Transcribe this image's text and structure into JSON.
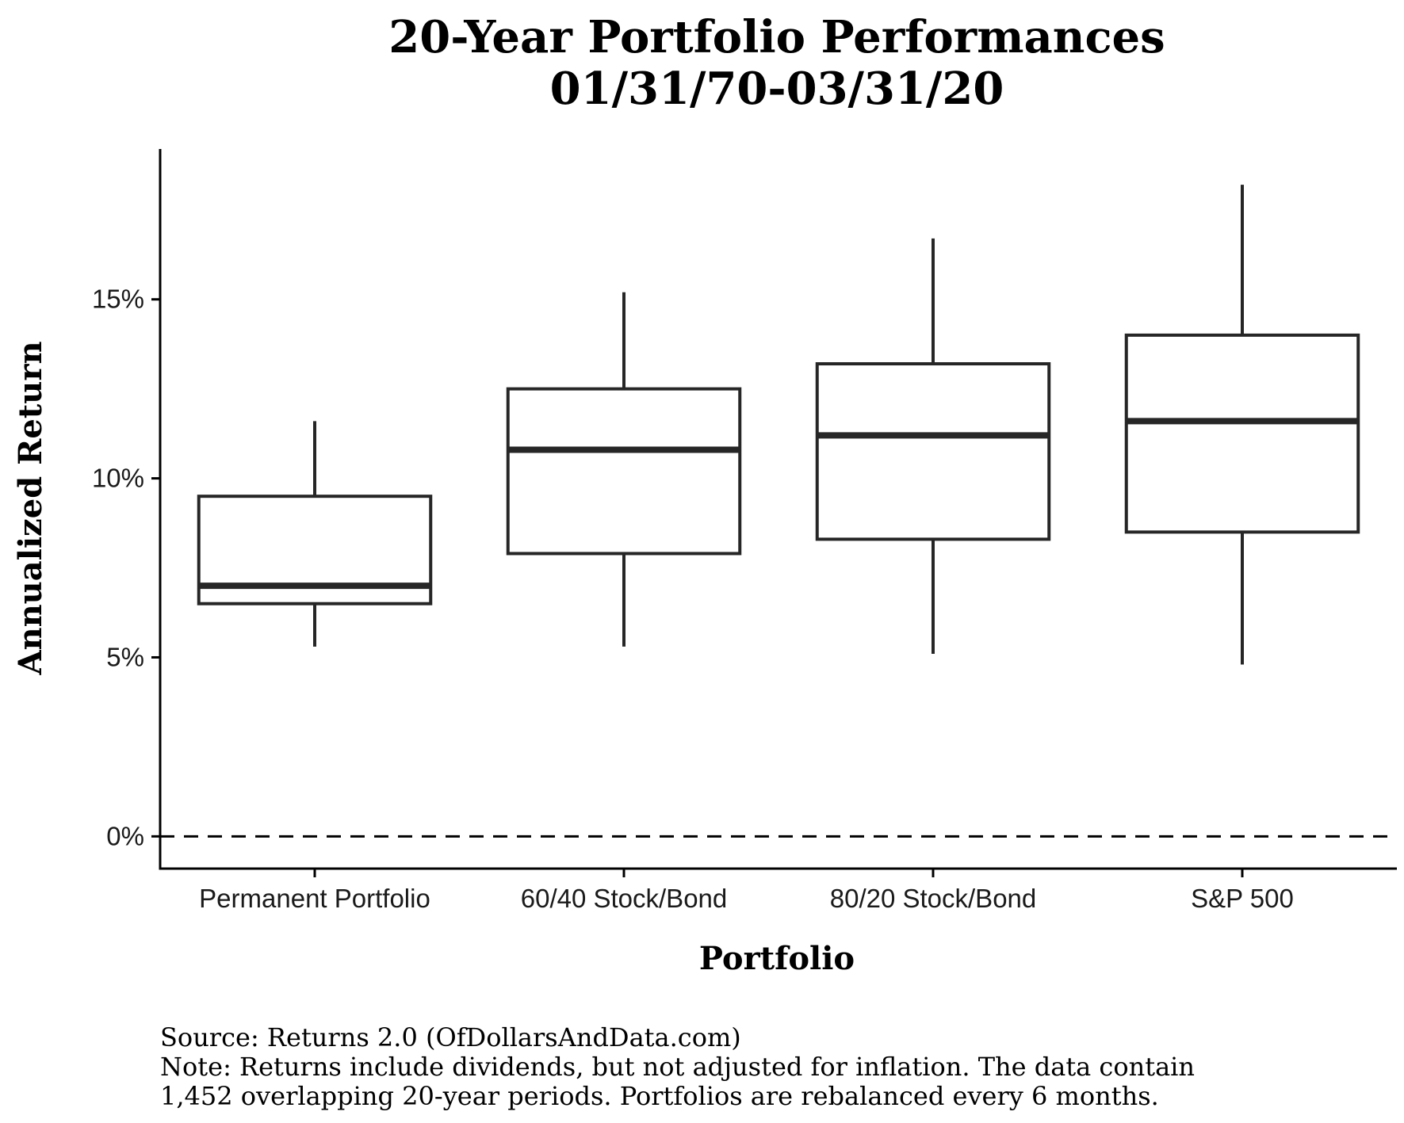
{
  "chart_data": {
    "type": "box",
    "title": "20-Year Portfolio Performances",
    "subtitle": "01/31/70-03/31/20",
    "xlabel": "Portfolio",
    "ylabel": "Annualized Return",
    "ylim": [
      -0.9,
      19.2
    ],
    "yticks": [
      {
        "value": 0,
        "label": "0%"
      },
      {
        "value": 5,
        "label": "5%"
      },
      {
        "value": 10,
        "label": "10%"
      },
      {
        "value": 15,
        "label": "15%"
      }
    ],
    "reference_line": {
      "value": 0,
      "style": "dashed"
    },
    "grid": false,
    "categories": [
      "Permanent Portfolio",
      "60/40 Stock/Bond",
      "80/20 Stock/Bond",
      "S&P 500"
    ],
    "boxes": [
      {
        "category": "Permanent Portfolio",
        "whisker_low": 5.3,
        "q1": 6.5,
        "median": 7.0,
        "q3": 9.5,
        "whisker_high": 11.6
      },
      {
        "category": "60/40 Stock/Bond",
        "whisker_low": 5.3,
        "q1": 7.9,
        "median": 10.8,
        "q3": 12.5,
        "whisker_high": 15.2
      },
      {
        "category": "80/20 Stock/Bond",
        "whisker_low": 5.1,
        "q1": 8.3,
        "median": 11.2,
        "q3": 13.2,
        "whisker_high": 16.7
      },
      {
        "category": "S&P 500",
        "whisker_low": 4.8,
        "q1": 8.5,
        "median": 11.6,
        "q3": 14.0,
        "whisker_high": 18.2
      }
    ],
    "colors": {
      "box_stroke": "#262626",
      "box_fill": "#ffffff",
      "axis": "#000000"
    }
  },
  "caption": {
    "source": "Source: Returns 2.0 (OfDollarsAndData.com)",
    "note_line1": "Note: Returns include dividends, but not adjusted for inflation. The data contain",
    "note_line2": "1,452 overlapping 20-year periods. Portfolios are rebalanced every 6 months."
  }
}
